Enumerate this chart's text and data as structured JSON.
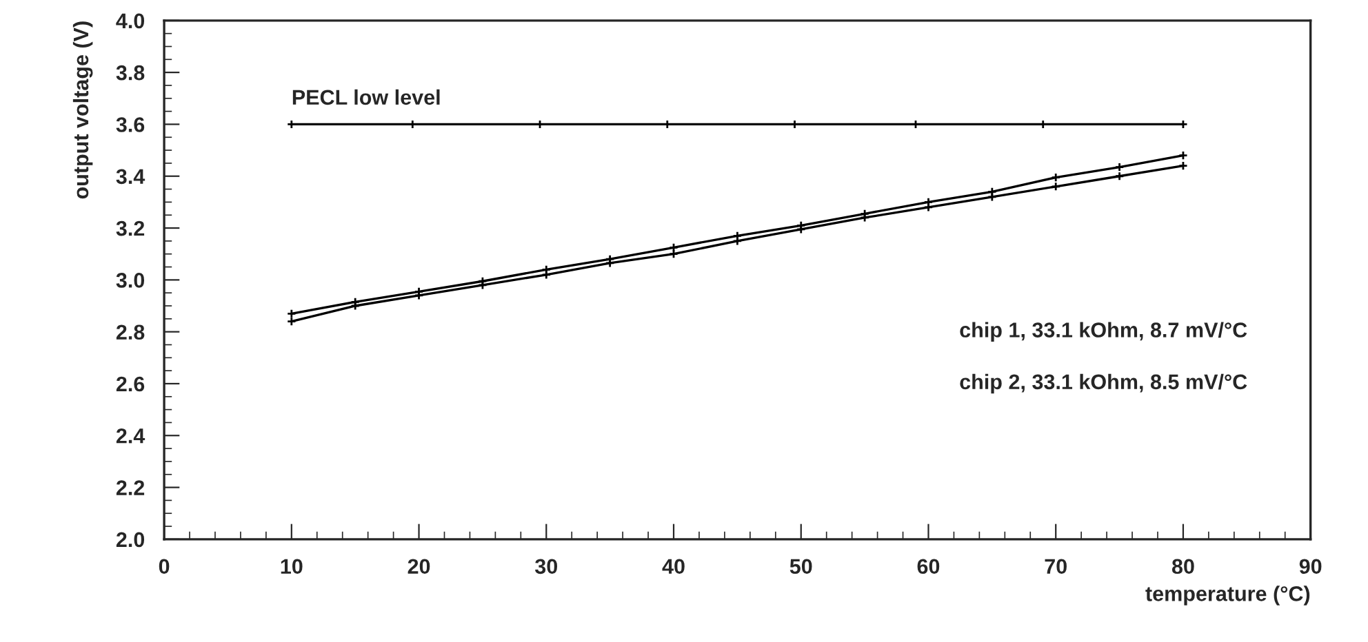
{
  "chart_data": {
    "type": "line",
    "xlabel": "temperature (°C)",
    "ylabel": "output voltage (V)",
    "xlim": [
      0,
      90
    ],
    "xticks": [
      0,
      10,
      20,
      30,
      40,
      50,
      60,
      70,
      80,
      90
    ],
    "ylim": [
      2.0,
      4.0
    ],
    "yticks": [
      {
        "value": 2.0,
        "label": "2.0"
      },
      {
        "value": 2.2,
        "label": "2.2"
      },
      {
        "value": 2.4,
        "label": "2.4"
      },
      {
        "value": 2.6,
        "label": "2.6"
      },
      {
        "value": 2.8,
        "label": "2.8"
      },
      {
        "value": 3.0,
        "label": "3.0"
      },
      {
        "value": 3.2,
        "label": "3.2"
      },
      {
        "value": 3.4,
        "label": "3.4"
      },
      {
        "value": 3.6,
        "label": "3.6"
      },
      {
        "value": 3.8,
        "label": "3.8"
      },
      {
        "value": 4.0,
        "label": "4.0"
      }
    ],
    "grid": false,
    "marker": "cross",
    "series": [
      {
        "color": "#000000",
        "x": [
          10,
          19.5,
          29.5,
          39.5,
          49.5,
          59,
          69,
          80
        ],
        "values": [
          3.6,
          3.6,
          3.6,
          3.6,
          3.6,
          3.6,
          3.6,
          3.6
        ]
      },
      {
        "color": "#000000",
        "x": [
          10,
          15,
          20,
          25,
          30,
          35,
          40,
          45,
          50,
          55,
          60,
          65,
          70,
          75,
          80
        ],
        "values": [
          2.87,
          2.915,
          2.955,
          2.995,
          3.04,
          3.08,
          3.125,
          3.17,
          3.21,
          3.255,
          3.3,
          3.34,
          3.395,
          3.435,
          3.48
        ]
      },
      {
        "color": "#000000",
        "x": [
          10,
          15,
          20,
          25,
          30,
          35,
          40,
          45,
          50,
          55,
          60,
          65,
          70,
          75,
          80
        ],
        "values": [
          2.84,
          2.9,
          2.94,
          2.98,
          3.02,
          3.065,
          3.1,
          3.15,
          3.195,
          3.24,
          3.28,
          3.32,
          3.36,
          3.4,
          3.44
        ]
      }
    ],
    "annotations": [
      {
        "text": "PECL low level",
        "x": 10,
        "y": 3.6
      },
      "chip 1, 33.1 kOhm, 8.7 mV/°C",
      "chip 2, 33.1 kOhm, 8.5 mV/°C"
    ]
  }
}
